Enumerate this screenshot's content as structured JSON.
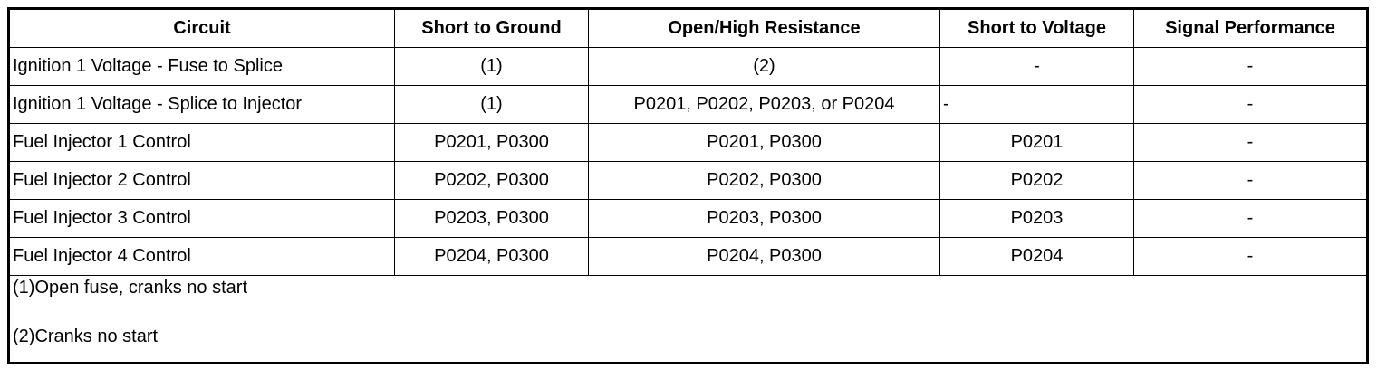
{
  "headers": [
    "Circuit",
    "Short to Ground",
    "Open/High Resistance",
    "Short to Voltage",
    "Signal Performance"
  ],
  "rows": [
    [
      "Ignition 1 Voltage - Fuse to Splice",
      "(1)",
      "(2)",
      "-",
      "-"
    ],
    [
      "Ignition 1 Voltage - Splice to Injector",
      "(1)",
      "P0201, P0202, P0203, or P0204",
      "-",
      "-"
    ],
    [
      "Fuel Injector 1 Control",
      "P0201, P0300",
      "P0201, P0300",
      "P0201",
      "-"
    ],
    [
      "Fuel Injector 2 Control",
      "P0202, P0300",
      "P0202, P0300",
      "P0202",
      "-"
    ],
    [
      "Fuel Injector 3 Control",
      "P0203, P0300",
      "P0203, P0300",
      "P0203",
      "-"
    ],
    [
      "Fuel Injector 4 Control",
      "P0204, P0300",
      "P0204, P0300",
      "P0204",
      "-"
    ]
  ],
  "notes": [
    "(1)Open fuse, cranks no start",
    "(2)Cranks no start"
  ]
}
